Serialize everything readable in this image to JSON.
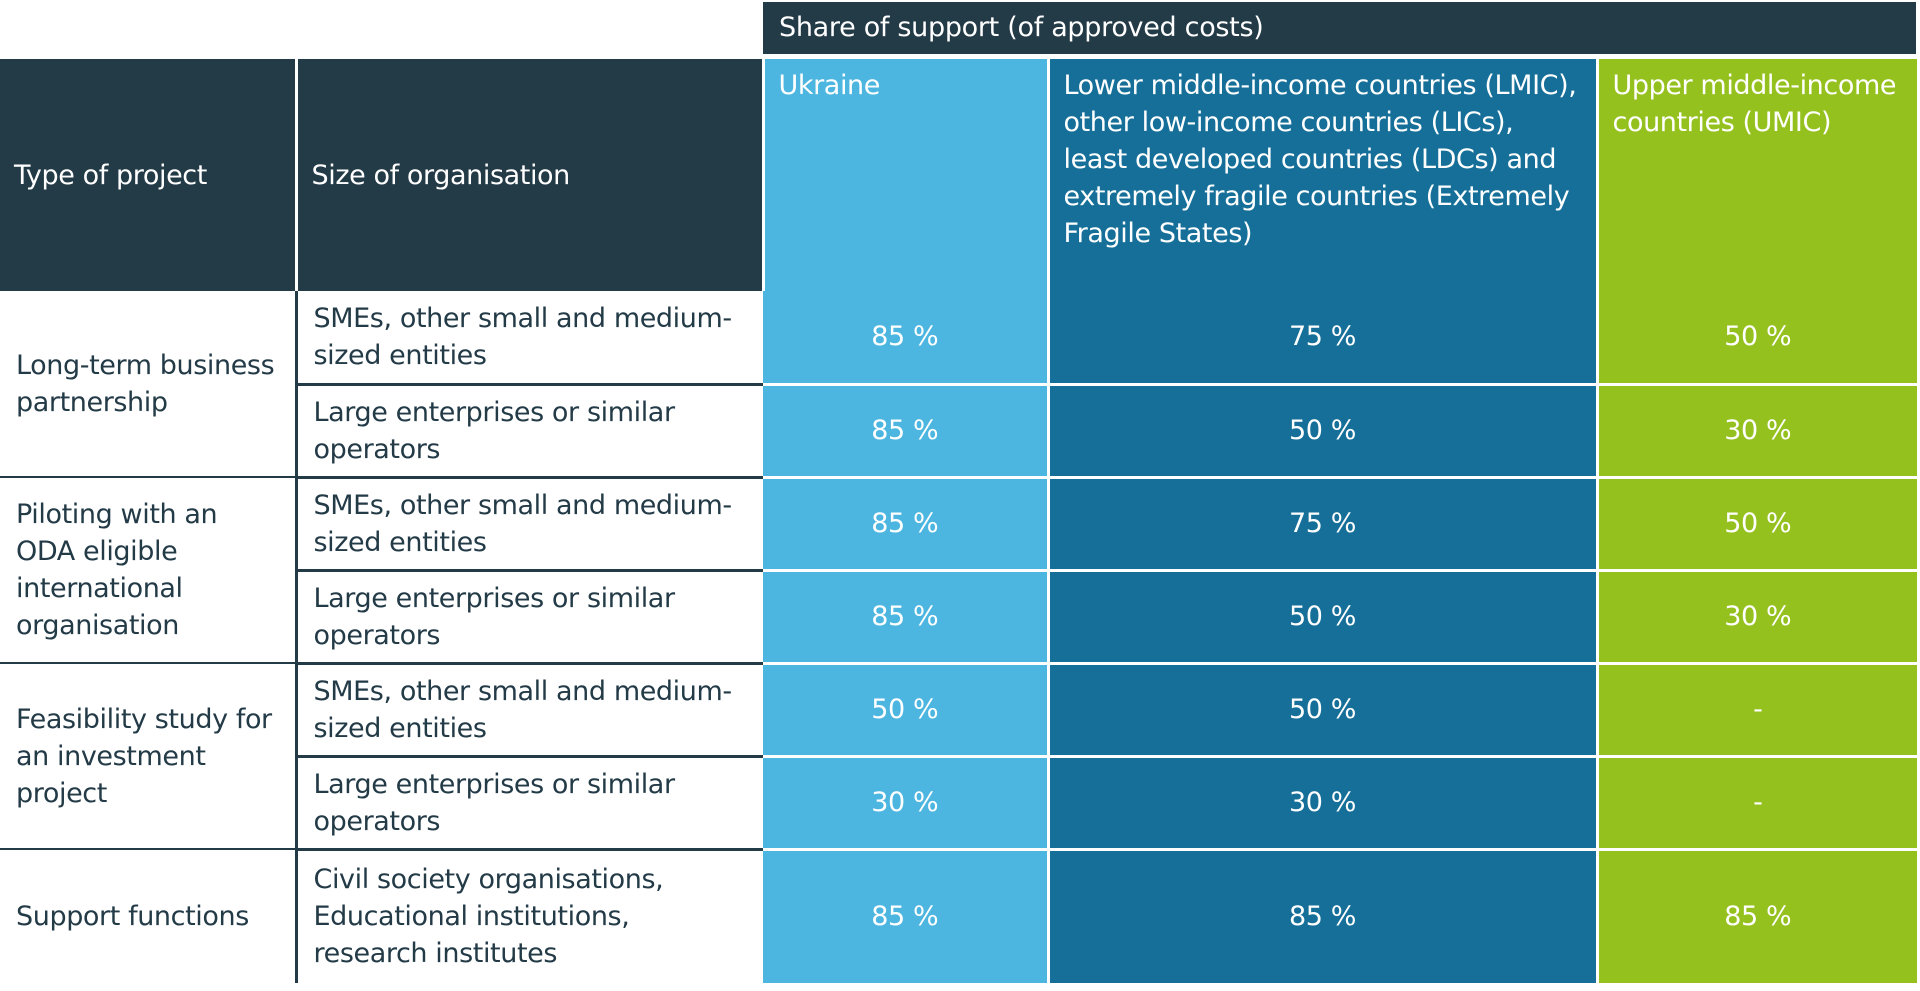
{
  "group_header": "Share of support (of approved costs)",
  "columns": {
    "type": "Type of project",
    "size": "Size of organisation",
    "ukraine": "Ukraine",
    "lmic": "Lower middle-income countries (LMIC), other low-income countries (LICs), least developed countries (LDCs) and extremely fragile countries (Extremely Fragile States)",
    "umic": "Upper middle-income countries (UMIC)"
  },
  "colors": {
    "dark": "#233a47",
    "ukraine": "#4cb6e0",
    "lmic": "#166f98",
    "umic": "#95c11f"
  },
  "groups": [
    {
      "type": "Long-term business partnership",
      "rows": [
        {
          "size": "SMEs, other small and medium-sized entities",
          "values": [
            "85 %",
            "75 %",
            "50 %"
          ]
        },
        {
          "size": "Large enterprises or similar operators",
          "values": [
            "85 %",
            "50 %",
            "30 %"
          ]
        }
      ]
    },
    {
      "type": "Piloting with an ODA eligible international organisation",
      "rows": [
        {
          "size": "SMEs, other small and medium-sized entities",
          "values": [
            "85 %",
            "75 %",
            "50 %"
          ]
        },
        {
          "size": "Large enterprises or similar operators",
          "values": [
            "85 %",
            "50 %",
            "30 %"
          ]
        }
      ]
    },
    {
      "type": "Feasibility study for an investment project",
      "rows": [
        {
          "size": "SMEs, other small and medium-sized entities",
          "values": [
            "50 %",
            "50 %",
            "-"
          ]
        },
        {
          "size": "Large enterprises or similar operators",
          "values": [
            "30 %",
            "30 %",
            "-"
          ]
        }
      ]
    },
    {
      "type": "Support functions",
      "rows": [
        {
          "size": "Civil society organisations, Educational institutions, research institutes",
          "values": [
            "85 %",
            "85 %",
            "85 %"
          ]
        }
      ]
    }
  ]
}
